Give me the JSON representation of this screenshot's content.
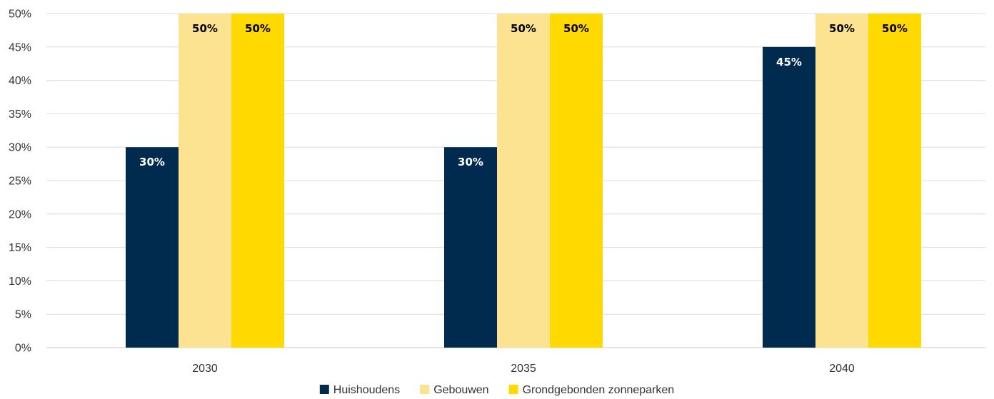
{
  "chart_data": {
    "type": "bar",
    "categories": [
      "2030",
      "2035",
      "2040"
    ],
    "series": [
      {
        "name": "Huishoudens",
        "color": "#002B4E",
        "label_color": "#FFFFFF",
        "values": [
          30,
          30,
          45
        ]
      },
      {
        "name": "Gebouwen",
        "color": "#FCE391",
        "label_color": "#000000",
        "values": [
          50,
          50,
          50
        ]
      },
      {
        "name": "Grondgebonden zonneparken",
        "color": "#FFD900",
        "label_color": "#000000",
        "values": [
          50,
          50,
          50
        ]
      }
    ],
    "data_labels": [
      [
        "30%",
        "30%",
        "45%"
      ],
      [
        "50%",
        "50%",
        "50%"
      ],
      [
        "50%",
        "50%",
        "50%"
      ]
    ],
    "y_ticks": [
      "0%",
      "5%",
      "10%",
      "15%",
      "20%",
      "25%",
      "30%",
      "35%",
      "40%",
      "45%",
      "50%"
    ],
    "ylim": [
      0,
      50
    ],
    "y_step": 5,
    "title": "",
    "xlabel": "",
    "ylabel": "",
    "grid": true,
    "legend_position": "bottom"
  }
}
